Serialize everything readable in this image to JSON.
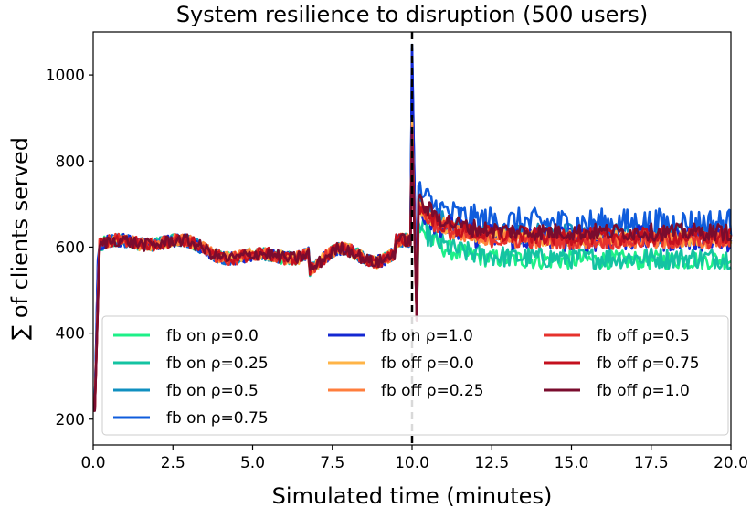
{
  "chart_data": {
    "type": "line",
    "title": "System resilience to disruption (500 users)",
    "xlabel": "Simulated time (minutes)",
    "ylabel": "∑ of clients served",
    "xlim": [
      0,
      20
    ],
    "ylim": [
      140,
      1100
    ],
    "xticks": [
      "0.0",
      "2.5",
      "5.0",
      "7.5",
      "10.0",
      "12.5",
      "15.0",
      "17.5",
      "20.0"
    ],
    "yticks": [
      "200",
      "400",
      "600",
      "800",
      "1000"
    ],
    "disruption_marker_x": 10,
    "grid": false,
    "legend_position": "bottom",
    "legend_columns": 3,
    "series": [
      {
        "name": "fb on ρ=0.0",
        "color": "#1ef088",
        "after_mean": 570,
        "after_amp": 22,
        "peak": 1000
      },
      {
        "name": "fb on ρ=0.25",
        "color": "#14c3a2",
        "after_mean": 575,
        "after_amp": 25,
        "peak": 1010
      },
      {
        "name": "fb on ρ=0.5",
        "color": "#1090c0",
        "after_mean": 630,
        "after_amp": 25,
        "peak": 1040
      },
      {
        "name": "fb on ρ=0.75",
        "color": "#0f5cdc",
        "after_mean": 655,
        "after_amp": 35,
        "peak": 1070
      },
      {
        "name": "fb on ρ=1.0",
        "color": "#1428d2",
        "after_mean": 620,
        "after_amp": 30,
        "peak": 1060
      },
      {
        "name": "fb off ρ=0.0",
        "color": "#ffb447",
        "after_mean": 620,
        "after_amp": 18,
        "peak": 900
      },
      {
        "name": "fb off ρ=0.25",
        "color": "#ff7e3c",
        "after_mean": 615,
        "after_amp": 18,
        "peak": 880
      },
      {
        "name": "fb off ρ=0.5",
        "color": "#e6322d",
        "after_mean": 615,
        "after_amp": 20,
        "peak": 860
      },
      {
        "name": "fb off ρ=0.75",
        "color": "#c4101e",
        "after_mean": 625,
        "after_amp": 20,
        "peak": 870
      },
      {
        "name": "fb off ρ=1.0",
        "color": "#7a0c2e",
        "after_mean": 635,
        "after_amp": 20,
        "peak": 860
      }
    ]
  }
}
